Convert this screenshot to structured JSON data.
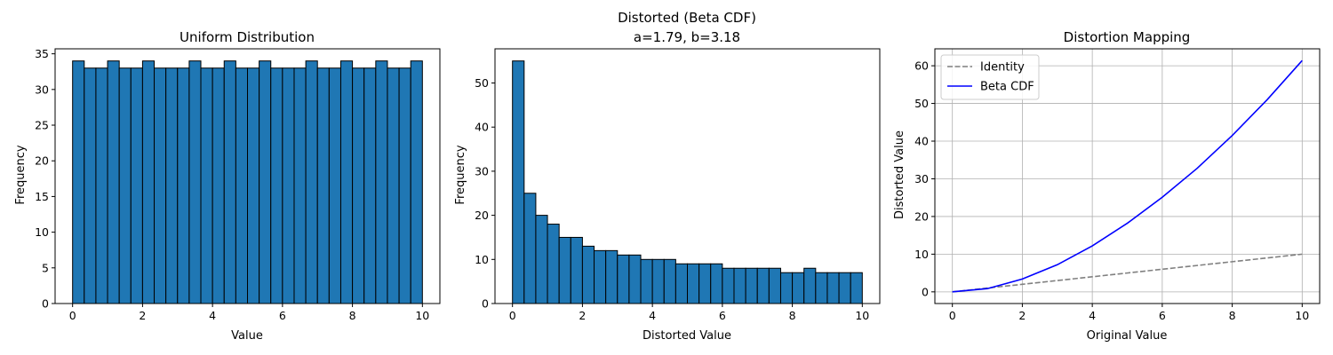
{
  "chart_data": [
    {
      "type": "bar",
      "title": "Uniform Distribution",
      "xlabel": "Value",
      "ylabel": "Frequency",
      "xlim": [
        -0.5,
        10.5
      ],
      "ylim": [
        0,
        35.7
      ],
      "xticks": [
        0,
        2,
        4,
        6,
        8,
        10
      ],
      "yticks": [
        0,
        5,
        10,
        15,
        20,
        25,
        30,
        35
      ],
      "bin_range": [
        0,
        10
      ],
      "values": [
        34,
        33,
        33,
        34,
        33,
        33,
        34,
        33,
        33,
        33,
        34,
        33,
        33,
        34,
        33,
        33,
        34,
        33,
        33,
        33,
        34,
        33,
        33,
        34,
        33,
        33,
        34,
        33,
        33,
        34
      ],
      "bar_color": "#1f77b4",
      "edge_color": "#000000",
      "grid": false
    },
    {
      "type": "bar",
      "title": "Distorted (Beta CDF)",
      "subtitle": "a=1.79, b=3.18",
      "xlabel": "Distorted Value",
      "ylabel": "Frequency",
      "xlim": [
        -0.5,
        10.5
      ],
      "ylim": [
        0,
        57.75
      ],
      "xticks": [
        0,
        2,
        4,
        6,
        8,
        10
      ],
      "yticks": [
        0,
        10,
        20,
        30,
        40,
        50
      ],
      "bin_range": [
        0,
        10
      ],
      "values": [
        55,
        25,
        20,
        18,
        15,
        15,
        13,
        12,
        12,
        11,
        11,
        10,
        10,
        10,
        9,
        9,
        9,
        9,
        8,
        8,
        8,
        8,
        8,
        7,
        7,
        8,
        7,
        7,
        7,
        7
      ],
      "bar_color": "#1f77b4",
      "edge_color": "#000000",
      "grid": false
    },
    {
      "type": "line",
      "title": "Distortion Mapping",
      "xlabel": "Original Value",
      "ylabel": "Distorted Value",
      "xlim": [
        -0.5,
        10.5
      ],
      "ylim": [
        -3.1,
        64.5
      ],
      "xticks": [
        0,
        2,
        4,
        6,
        8,
        10
      ],
      "yticks": [
        0,
        10,
        20,
        30,
        40,
        50,
        60
      ],
      "grid": true,
      "legend_position": "top-left",
      "x": [
        0,
        1,
        2,
        3,
        4,
        5,
        6,
        7,
        8,
        9,
        10
      ],
      "series": [
        {
          "name": "Identity",
          "color": "#808080",
          "dash": true,
          "values": [
            0,
            1,
            2,
            3,
            4,
            5,
            6,
            7,
            8,
            9,
            10
          ]
        },
        {
          "name": "Beta CDF",
          "color": "#0000ff",
          "dash": false,
          "values": [
            0,
            0.85,
            3.4,
            7.2,
            12.2,
            18.2,
            25.1,
            32.8,
            41.5,
            51.0,
            61.4
          ]
        }
      ]
    }
  ]
}
